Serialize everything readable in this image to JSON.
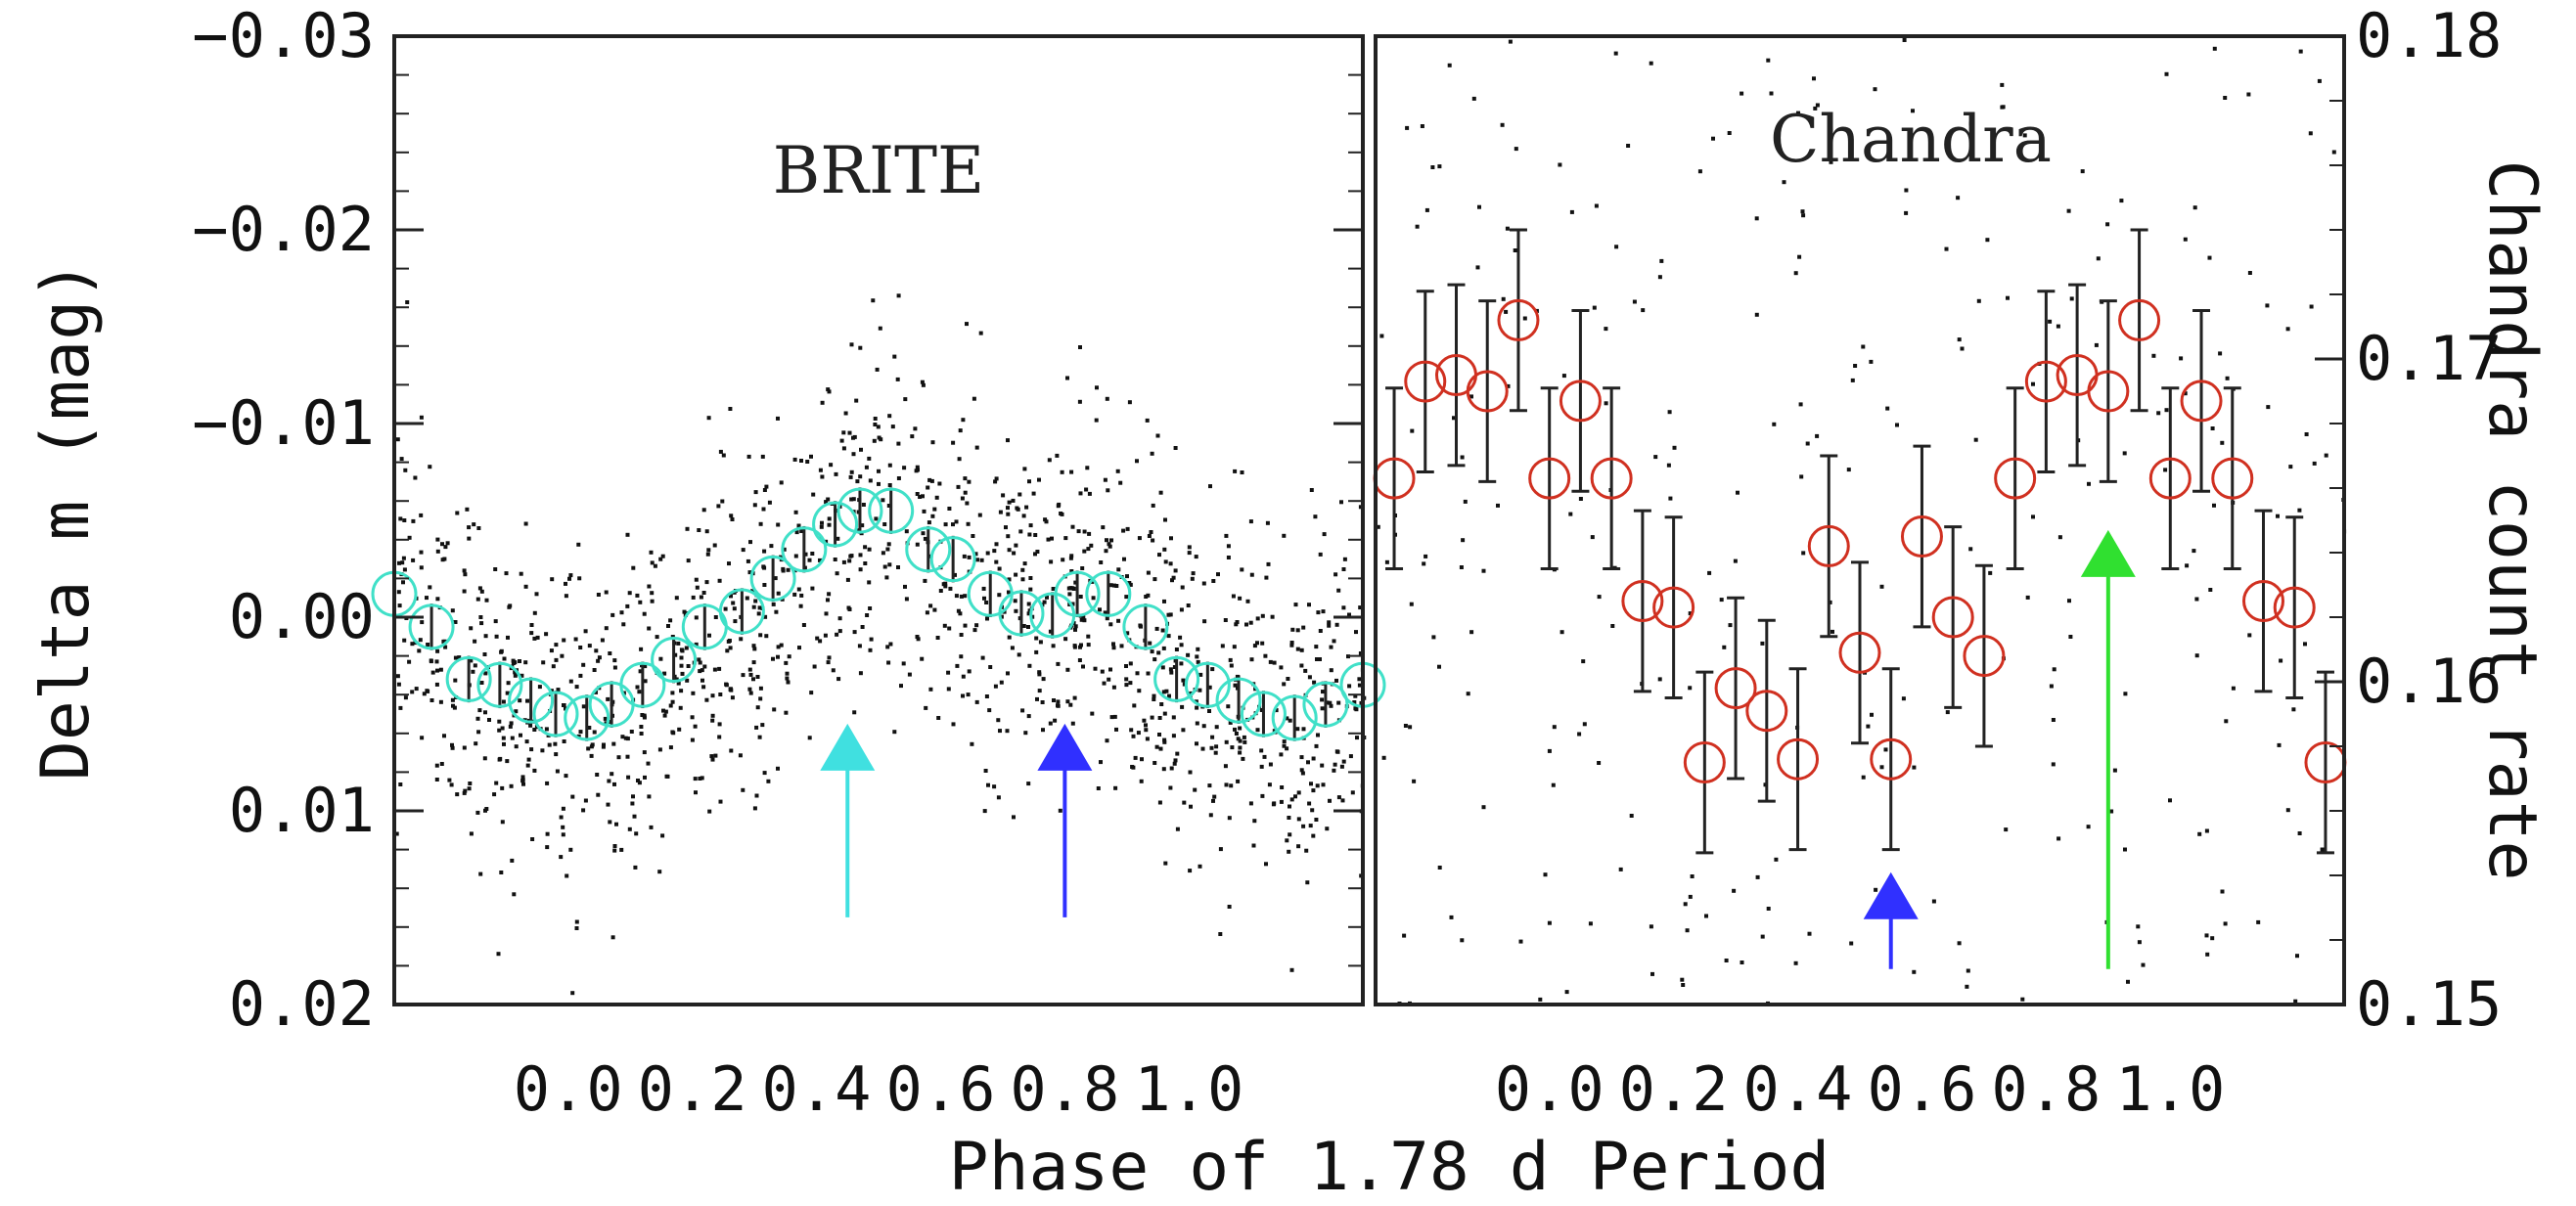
{
  "figure_caption": "Phase of 1.78 d Period",
  "colors": {
    "brite_binned": "#40e0c8",
    "chandra_binned": "#d03020",
    "cyan_arrow": "#40e0e0",
    "blue_arrow": "#3030ff",
    "green_arrow": "#30e030",
    "points": "#111111"
  },
  "chart_data": [
    {
      "type": "scatter",
      "title": "BRITE",
      "xlabel": "Phase of 1.78 d Period",
      "ylabel": "Delta m (mag)",
      "xlim": [
        -0.28,
        1.28
      ],
      "ylim": [
        0.02,
        -0.03
      ],
      "y_inverted": true,
      "x_ticks": [
        0.0,
        0.2,
        0.4,
        0.6,
        0.8,
        1.0
      ],
      "x_tick_labels": [
        "0.0",
        "0.2",
        "0.4",
        "0.6",
        "0.8",
        "1.0"
      ],
      "y_ticks": [
        -0.03,
        -0.02,
        -0.01,
        0.0,
        0.01,
        0.02
      ],
      "y_tick_labels": [
        "−0.03",
        "−0.02",
        "−0.01",
        "0.00",
        "0.01",
        "0.02"
      ],
      "raw_points_description": "about 1400 unbinned photometric points scattered around the binned curve",
      "binned": {
        "phase": [
          -0.28,
          -0.22,
          -0.16,
          -0.11,
          -0.06,
          -0.02,
          0.03,
          0.07,
          0.12,
          0.17,
          0.22,
          0.28,
          0.33,
          0.38,
          0.43,
          0.47,
          0.52,
          0.58,
          0.62,
          0.68,
          0.73,
          0.78,
          0.82,
          0.87,
          0.93,
          0.98,
          1.03,
          1.08,
          1.12,
          1.17,
          1.22,
          1.28
        ],
        "delta_m": [
          -0.0012,
          0.0005,
          0.0032,
          0.0035,
          0.0043,
          0.005,
          0.0052,
          0.0045,
          0.0035,
          0.0022,
          0.0005,
          -0.0003,
          -0.002,
          -0.0035,
          -0.0048,
          -0.0055,
          -0.0055,
          -0.0035,
          -0.003,
          -0.0012,
          -0.0002,
          -0.0001,
          -0.0012,
          -0.0012,
          0.0005,
          0.0032,
          0.0035,
          0.0043,
          0.005,
          0.0052,
          0.0045,
          0.0035
        ],
        "error": [
          0.0012,
          0.0012,
          0.0012,
          0.0012,
          0.0012,
          0.0012,
          0.0012,
          0.0012,
          0.0012,
          0.0012,
          0.0012,
          0.0012,
          0.0012,
          0.0012,
          0.0012,
          0.0012,
          0.0012,
          0.0012,
          0.0012,
          0.0012,
          0.0012,
          0.0012,
          0.0012,
          0.0012,
          0.0012,
          0.0012,
          0.0012,
          0.0012,
          0.0012,
          0.0012,
          0.0012,
          0.0012
        ]
      },
      "arrows": [
        {
          "name": "cyan-arrow",
          "phase": 0.45,
          "from_delta_m": 0.0155,
          "to_delta_m": 0.0055,
          "color": "cyan"
        },
        {
          "name": "blue-arrow",
          "phase": 0.8,
          "from_delta_m": 0.0155,
          "to_delta_m": 0.0055,
          "color": "blue"
        }
      ]
    },
    {
      "type": "scatter",
      "title": "Chandra",
      "xlabel": "Phase of 1.78 d Period",
      "ylabel": "Chandra count rate",
      "xlim": [
        -0.28,
        1.28
      ],
      "ylim": [
        0.15,
        0.18
      ],
      "x_ticks": [
        0.0,
        0.2,
        0.4,
        0.6,
        0.8,
        1.0
      ],
      "x_tick_labels": [
        "0.0",
        "0.2",
        "0.4",
        "0.6",
        "0.8",
        "1.0"
      ],
      "y_ticks": [
        0.15,
        0.16,
        0.17,
        0.18
      ],
      "y_tick_labels": [
        "0.15",
        "0.16",
        "0.17",
        "0.18"
      ],
      "raw_points_description": "about 300 unbinned count-rate points sparsely scattered over the panel",
      "binned": {
        "phase": [
          -0.25,
          -0.2,
          -0.15,
          -0.1,
          -0.05,
          0.0,
          0.05,
          0.1,
          0.15,
          0.2,
          0.25,
          0.3,
          0.35,
          0.4,
          0.45,
          0.5,
          0.55,
          0.6,
          0.65,
          0.7,
          0.75,
          0.8,
          0.85,
          0.9,
          0.95,
          1.0,
          1.05,
          1.1,
          1.15,
          1.2,
          1.25
        ],
        "rate": [
          0.1663,
          0.1693,
          0.1695,
          0.169,
          0.1712,
          0.1663,
          0.1687,
          0.1663,
          0.1625,
          0.1623,
          0.1575,
          0.1598,
          0.1591,
          0.1576,
          0.1642,
          0.1609,
          0.1576,
          0.1645,
          0.162,
          0.1608,
          0.1663,
          0.1693,
          0.1695,
          0.169,
          0.1712,
          0.1663,
          0.1687,
          0.1663,
          0.1625,
          0.1623,
          0.1575
        ],
        "error": [
          0.0028,
          0.0028,
          0.0028,
          0.0028,
          0.0028,
          0.0028,
          0.0028,
          0.0028,
          0.0028,
          0.0028,
          0.0028,
          0.0028,
          0.0028,
          0.0028,
          0.0028,
          0.0028,
          0.0028,
          0.0028,
          0.0028,
          0.0028,
          0.0028,
          0.0028,
          0.0028,
          0.0028,
          0.0028,
          0.0028,
          0.0028,
          0.0028,
          0.0028,
          0.0028,
          0.0028
        ]
      },
      "arrows": [
        {
          "name": "blue-arrow",
          "phase": 0.55,
          "from_rate": 0.1511,
          "to_rate": 0.1541,
          "color": "blue"
        },
        {
          "name": "green-arrow",
          "phase": 0.9,
          "from_rate": 0.1511,
          "to_rate": 0.1647,
          "color": "green"
        }
      ]
    }
  ]
}
